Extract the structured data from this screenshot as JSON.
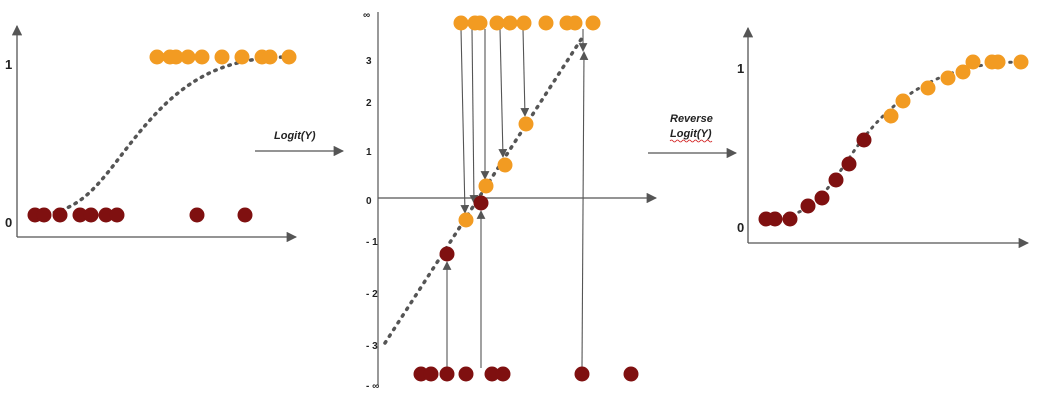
{
  "colors": {
    "positive": "#F29B22",
    "negative": "#7F1010",
    "axis": "#555555",
    "curve": "#555555",
    "squiggle": "#D11A1A"
  },
  "left_panel": {
    "y_tick_top": "1",
    "y_tick_bottom": "0"
  },
  "middle_panel": {
    "y_ticks": [
      "∞",
      "3",
      "2",
      "1",
      "0",
      "- 1",
      "- 2",
      "- 3",
      "- ∞"
    ]
  },
  "right_panel": {
    "y_tick_top": "1",
    "y_tick_bottom": "0"
  },
  "transforms": {
    "logit_label": "Logit(Y)",
    "reverse_line1": "Reverse",
    "reverse_line2": "Logit(Y)"
  }
}
